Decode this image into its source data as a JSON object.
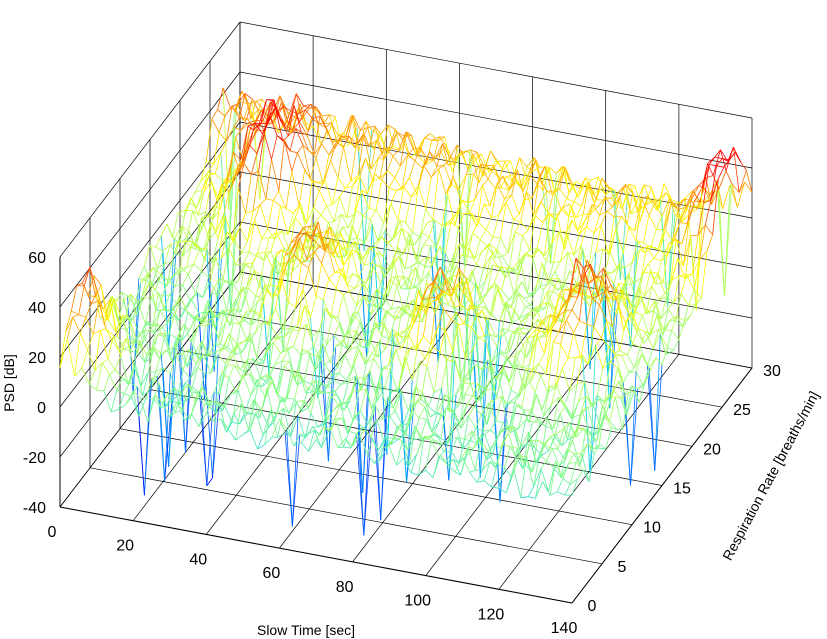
{
  "chart_data": {
    "type": "surface",
    "style": "3D mesh (waterfall) with jet colormap",
    "xlabel": "Slow Time [sec]",
    "ylabel": "Respiration Rate [breaths/min]",
    "zlabel": "PSD [dB]",
    "xlim": [
      0,
      140
    ],
    "ylim": [
      0,
      30
    ],
    "zlim": [
      -40,
      60
    ],
    "x_ticks": [
      "0",
      "20",
      "40",
      "60",
      "80",
      "100",
      "120",
      "140"
    ],
    "y_ticks": [
      "0",
      "5",
      "10",
      "15",
      "20",
      "25",
      "30"
    ],
    "z_ticks": [
      "-40",
      "-20",
      "0",
      "20",
      "40",
      "60"
    ],
    "grid": true,
    "colormap": [
      "#0000ff",
      "#00c8ff",
      "#80ff80",
      "#ffff00",
      "#ff8000",
      "#ff0000"
    ],
    "description_of_peaks": [
      {
        "t": 0,
        "rate": 3,
        "psd": 42
      },
      {
        "t": 20,
        "rate": 22,
        "psd": 45
      },
      {
        "t": 45,
        "rate": 14,
        "psd": 32
      },
      {
        "t": 85,
        "rate": 12,
        "psd": 30
      },
      {
        "t": 120,
        "rate": 14,
        "psd": 38
      },
      {
        "t": 140,
        "rate": 26,
        "psd": 40
      }
    ]
  }
}
